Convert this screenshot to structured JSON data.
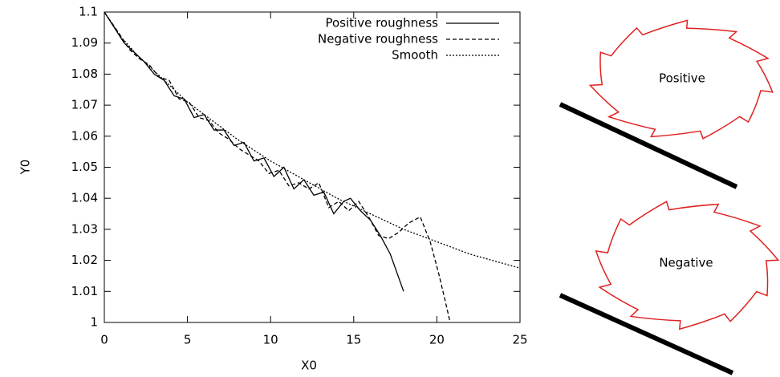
{
  "chart_data": {
    "type": "line",
    "xlabel": "X0",
    "ylabel": "Y0",
    "xlim": [
      0,
      25
    ],
    "xticks": [
      0,
      5,
      10,
      15,
      20,
      25
    ],
    "ylim": [
      1,
      1.1
    ],
    "yticks": [
      1,
      1.01,
      1.02,
      1.03,
      1.04,
      1.05,
      1.06,
      1.07,
      1.08,
      1.09,
      1.1
    ],
    "legend": "upper right",
    "series": [
      {
        "name": "Positive roughness",
        "color": "#000000",
        "dash": "solid",
        "x": [
          0,
          0.6,
          1.2,
          1.8,
          2.4,
          3.0,
          3.6,
          4.2,
          4.8,
          5.4,
          6.0,
          6.6,
          7.2,
          7.8,
          8.4,
          9.0,
          9.6,
          10.2,
          10.8,
          11.4,
          12.0,
          12.6,
          13.2,
          13.8,
          14.4,
          14.8,
          15.4,
          16.0,
          16.6,
          17.2,
          17.6,
          18.0
        ],
        "values": [
          1.1,
          1.095,
          1.09,
          1.087,
          1.084,
          1.08,
          1.078,
          1.073,
          1.072,
          1.066,
          1.067,
          1.062,
          1.062,
          1.057,
          1.058,
          1.052,
          1.053,
          1.047,
          1.05,
          1.043,
          1.046,
          1.041,
          1.042,
          1.035,
          1.039,
          1.04,
          1.036,
          1.033,
          1.028,
          1.022,
          1.016,
          1.01
        ]
      },
      {
        "name": "Negative roughness",
        "color": "#000000",
        "dash": "dashed",
        "x": [
          0,
          0.9,
          1.5,
          2.1,
          2.7,
          3.3,
          3.9,
          4.5,
          5.1,
          5.7,
          6.3,
          6.9,
          7.5,
          8.1,
          8.7,
          9.3,
          9.9,
          10.5,
          11.1,
          11.7,
          12.3,
          12.9,
          13.5,
          14.1,
          14.7,
          15.3,
          15.9,
          16.5,
          17.1,
          17.7,
          18.3,
          19.0,
          19.6,
          20.1,
          20.5,
          20.8
        ],
        "values": [
          1.1,
          1.093,
          1.088,
          1.085,
          1.083,
          1.079,
          1.078,
          1.072,
          1.071,
          1.066,
          1.065,
          1.061,
          1.059,
          1.056,
          1.054,
          1.052,
          1.048,
          1.049,
          1.044,
          1.045,
          1.043,
          1.045,
          1.037,
          1.039,
          1.036,
          1.039,
          1.034,
          1.028,
          1.027,
          1.029,
          1.032,
          1.034,
          1.026,
          1.016,
          1.007,
          1.0
        ]
      },
      {
        "name": "Smooth",
        "color": "#000000",
        "dash": "dotted",
        "x": [
          0,
          1,
          2,
          3,
          4,
          5,
          6,
          8,
          10,
          12,
          14,
          16,
          18,
          20,
          22,
          25
        ],
        "values": [
          1.1,
          1.092,
          1.086,
          1.081,
          1.076,
          1.071,
          1.067,
          1.059,
          1.052,
          1.046,
          1.04,
          1.035,
          1.03,
          1.026,
          1.022,
          1.0175
        ]
      }
    ]
  },
  "diagram": {
    "labels": [
      "Positive",
      "Negative"
    ]
  }
}
